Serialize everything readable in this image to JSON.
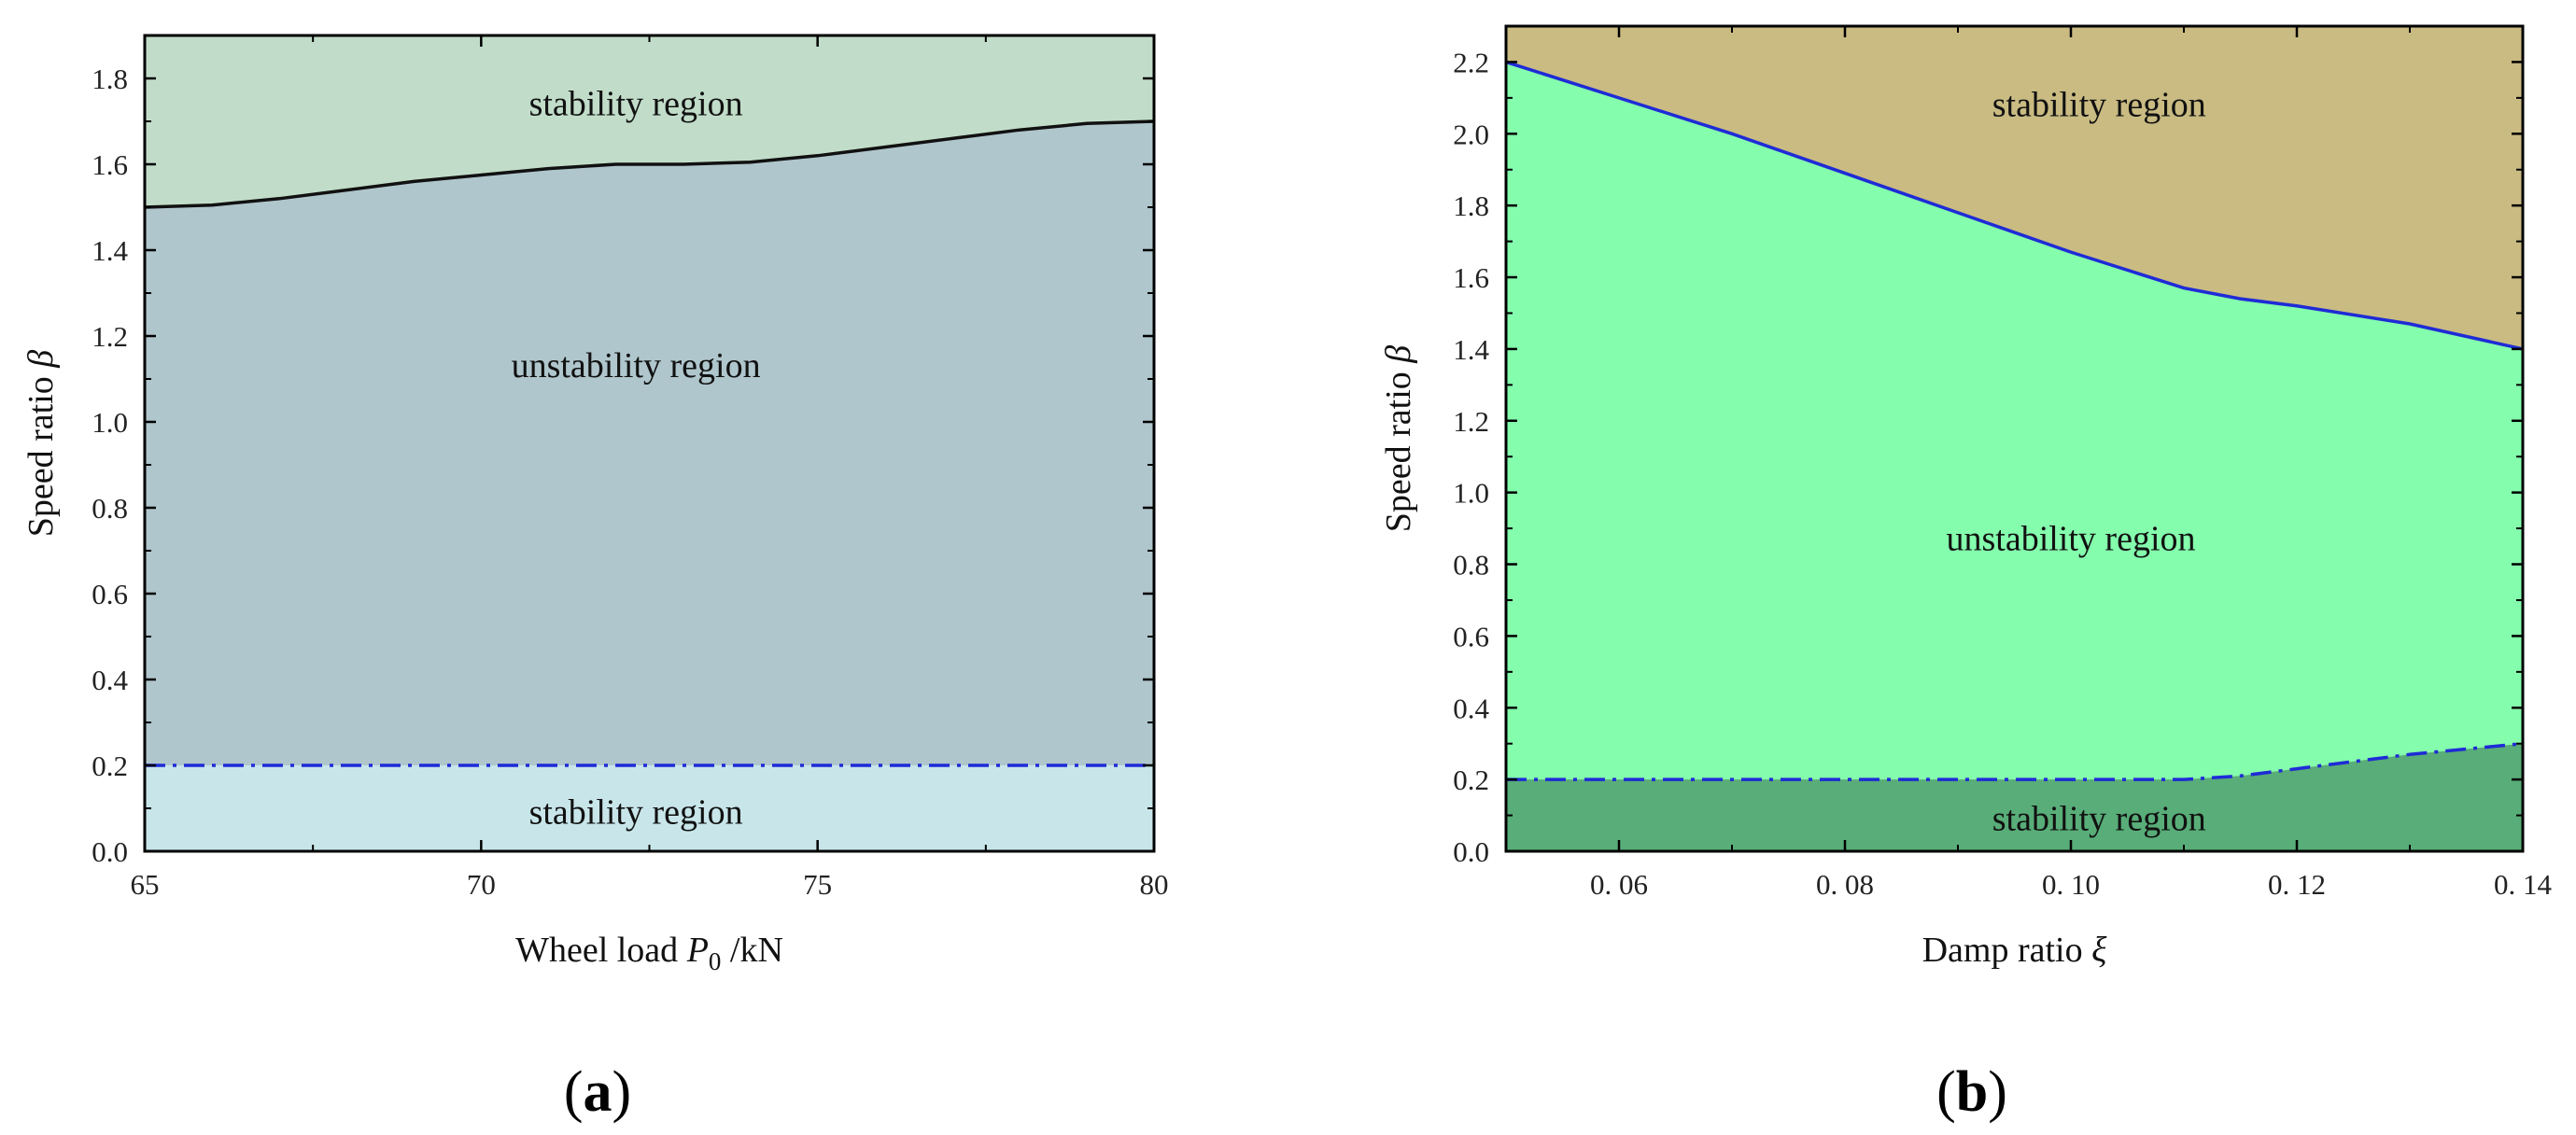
{
  "chart_data": [
    {
      "type": "area",
      "panel_label_open": "(",
      "panel_label_letter": "a",
      "panel_label_close": ")",
      "xlabel": "Wheel load",
      "xlabel_symbol": "P",
      "xlabel_subscript": "0",
      "xlabel_unit": "/kN",
      "ylabel": "Speed ratio",
      "ylabel_symbol": "β",
      "xlim": [
        65,
        80
      ],
      "ylim": [
        0,
        1.9
      ],
      "x_ticks": [
        65,
        70,
        75,
        80
      ],
      "x_tick_labels": [
        "65",
        "70",
        "75",
        "80"
      ],
      "y_ticks": [
        0,
        0.2,
        0.4,
        0.6,
        0.8,
        1.0,
        1.2,
        1.4,
        1.6,
        1.8
      ],
      "y_tick_labels": [
        "0.0",
        "0.2",
        "0.4",
        "0.6",
        "0.8",
        "1.0",
        "1.2",
        "1.4",
        "1.6",
        "1.8"
      ],
      "upper_boundary": {
        "x": [
          65,
          66,
          67,
          68,
          69,
          70,
          71,
          72,
          73,
          74,
          75,
          76,
          77,
          78,
          79,
          80
        ],
        "y": [
          1.5,
          1.505,
          1.52,
          1.54,
          1.56,
          1.575,
          1.59,
          1.6,
          1.6,
          1.605,
          1.62,
          1.64,
          1.66,
          1.68,
          1.695,
          1.7
        ]
      },
      "lower_boundary": {
        "x": [
          65,
          80
        ],
        "y": [
          0.2,
          0.2
        ]
      },
      "regions": [
        {
          "label": "stability region",
          "x": 72.3,
          "y": 1.74
        },
        {
          "label": "unstability region",
          "x": 72.3,
          "y": 1.13
        },
        {
          "label": "stability region",
          "x": 72.3,
          "y": 0.09
        }
      ],
      "colors": {
        "upper_region": "#c1ddc9",
        "middle_region": "#afc6cc",
        "lower_region": "#c8e6ea",
        "upper_line": "#111111",
        "lower_line": "#1f2bd6"
      }
    },
    {
      "type": "area",
      "panel_label_open": "(",
      "panel_label_letter": "b",
      "panel_label_close": ")",
      "xlabel": "Damp ratio",
      "xlabel_symbol": "ξ",
      "ylabel": "Speed ratio",
      "ylabel_symbol": "β",
      "xlim": [
        0.05,
        0.14
      ],
      "ylim": [
        0,
        2.3
      ],
      "x_ticks": [
        0.06,
        0.08,
        0.1,
        0.12,
        0.14
      ],
      "x_tick_labels": [
        "0. 06",
        "0. 08",
        "0. 10",
        "0. 12",
        "0. 14"
      ],
      "y_ticks": [
        0,
        0.2,
        0.4,
        0.6,
        0.8,
        1.0,
        1.2,
        1.4,
        1.6,
        1.8,
        2.0,
        2.2
      ],
      "y_tick_labels": [
        "0.0",
        "0.2",
        "0.4",
        "0.6",
        "0.8",
        "1.0",
        "1.2",
        "1.4",
        "1.6",
        "1.8",
        "2.0",
        "2.2"
      ],
      "upper_boundary": {
        "x": [
          0.05,
          0.06,
          0.07,
          0.08,
          0.09,
          0.1,
          0.11,
          0.115,
          0.12,
          0.13,
          0.14
        ],
        "y": [
          2.2,
          2.1,
          2.0,
          1.89,
          1.78,
          1.67,
          1.57,
          1.54,
          1.52,
          1.47,
          1.4
        ]
      },
      "lower_boundary": {
        "x": [
          0.05,
          0.06,
          0.07,
          0.08,
          0.09,
          0.1,
          0.11,
          0.115,
          0.12,
          0.13,
          0.14
        ],
        "y": [
          0.2,
          0.2,
          0.2,
          0.2,
          0.2,
          0.2,
          0.2,
          0.21,
          0.23,
          0.27,
          0.3
        ]
      },
      "regions": [
        {
          "label": "stability region",
          "x": 0.1025,
          "y": 2.08
        },
        {
          "label": "unstability region",
          "x": 0.1,
          "y": 0.87
        },
        {
          "label": "stability region",
          "x": 0.1025,
          "y": 0.09
        }
      ],
      "colors": {
        "upper_region": "#c9bb82",
        "middle_region": "#84fdad",
        "lower_region": "#58ad78",
        "upper_line": "#1f2bd6",
        "lower_line": "#1f2bd6"
      }
    }
  ]
}
